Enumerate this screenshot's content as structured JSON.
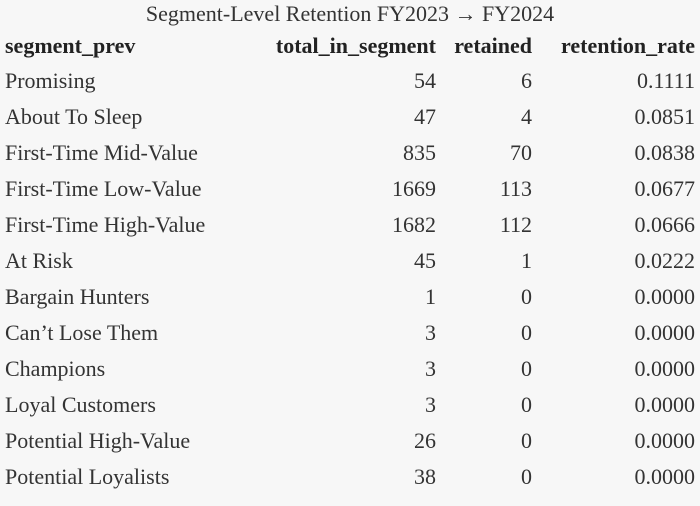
{
  "caption": "Segment-Level Retention FY2023 → FY2024",
  "columns": [
    "segment_prev",
    "total_in_segment",
    "retained",
    "retention_rate"
  ],
  "rows": [
    [
      "Promising",
      "54",
      "6",
      "0.1111"
    ],
    [
      "About To Sleep",
      "47",
      "4",
      "0.0851"
    ],
    [
      "First-Time Mid-Value",
      "835",
      "70",
      "0.0838"
    ],
    [
      "First-Time Low-Value",
      "1669",
      "113",
      "0.0677"
    ],
    [
      "First-Time High-Value",
      "1682",
      "112",
      "0.0666"
    ],
    [
      "At Risk",
      "45",
      "1",
      "0.0222"
    ],
    [
      "Bargain Hunters",
      "1",
      "0",
      "0.0000"
    ],
    [
      "Can’t Lose Them",
      "3",
      "0",
      "0.0000"
    ],
    [
      "Champions",
      "3",
      "0",
      "0.0000"
    ],
    [
      "Loyal Customers",
      "3",
      "0",
      "0.0000"
    ],
    [
      "Potential High-Value",
      "26",
      "0",
      "0.0000"
    ],
    [
      "Potential Loyalists",
      "38",
      "0",
      "0.0000"
    ]
  ]
}
